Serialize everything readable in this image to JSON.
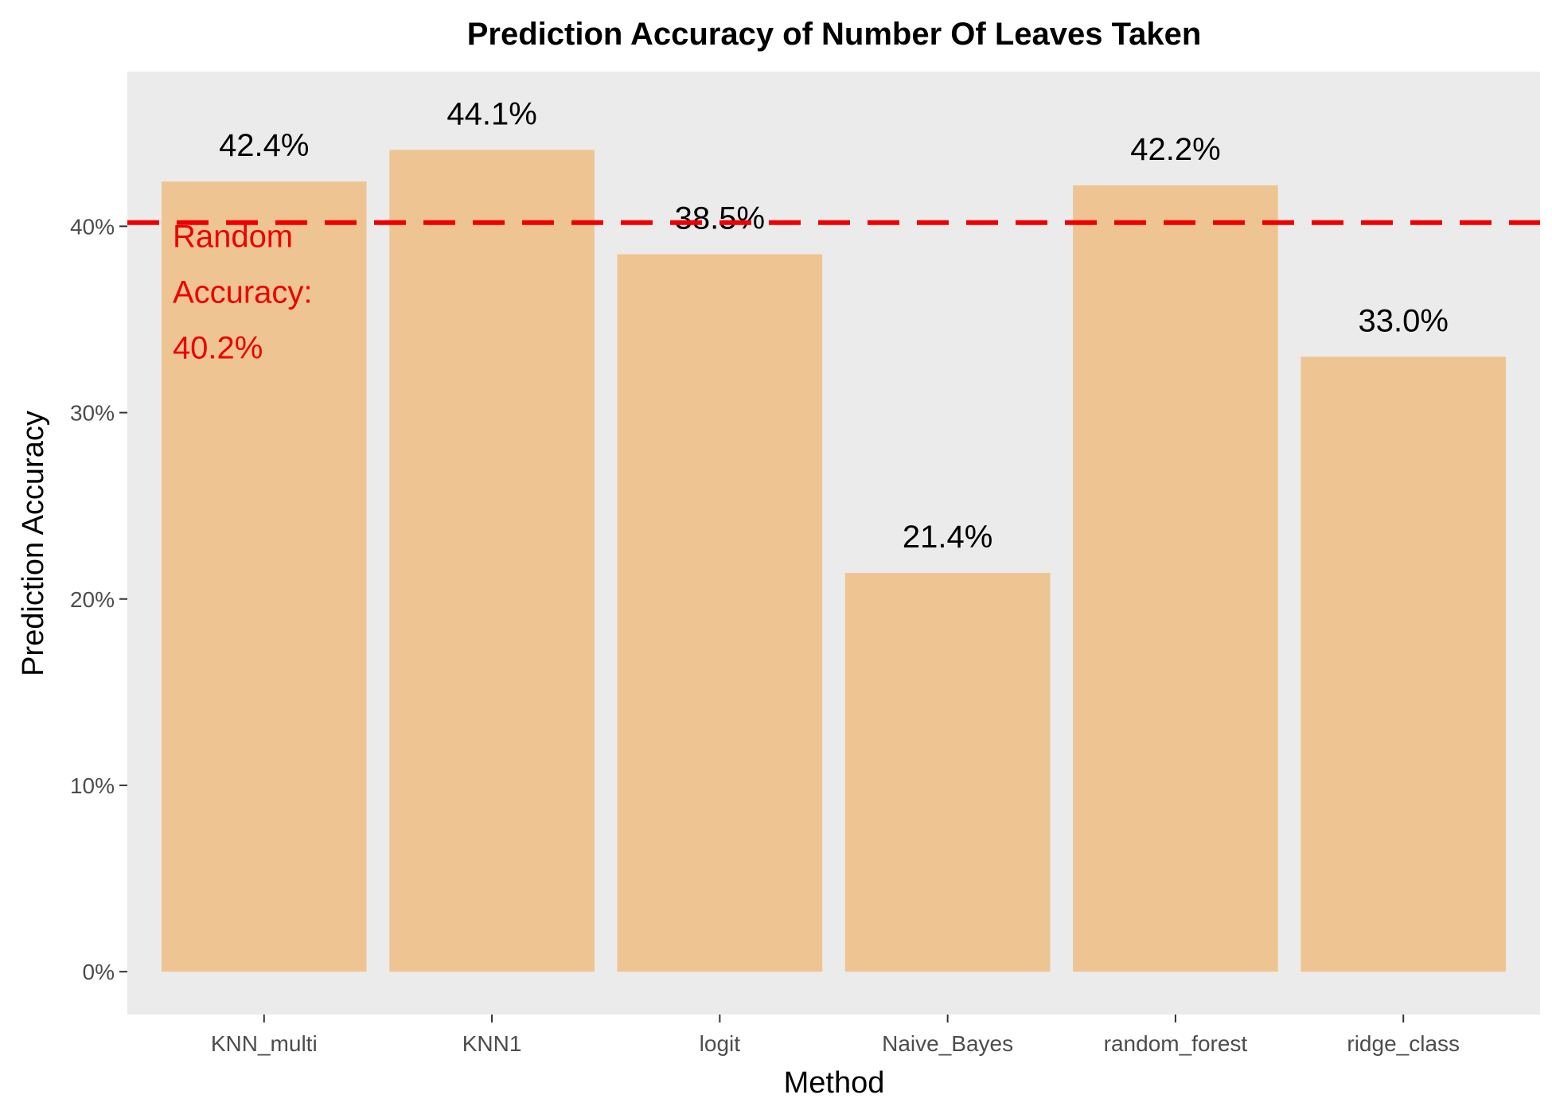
{
  "chart_data": {
    "type": "bar",
    "title": "Prediction Accuracy of Number Of Leaves Taken",
    "xlabel": "Method",
    "ylabel": "Prediction Accuracy",
    "categories": [
      "KNN_multi",
      "KNN1",
      "logit",
      "Naive_Bayes",
      "random_forest",
      "ridge_class"
    ],
    "values": [
      42.4,
      44.1,
      38.5,
      21.4,
      42.2,
      33.0
    ],
    "value_labels": [
      "42.4%",
      "44.1%",
      "38.5%",
      "21.4%",
      "42.2%",
      "33.0%"
    ],
    "y_ticks": [
      0,
      10,
      20,
      30,
      40
    ],
    "y_tick_labels": [
      "0%",
      "10%",
      "20%",
      "30%",
      "40%"
    ],
    "ylim": [
      -2.3,
      48.3
    ],
    "grid": false,
    "reference_line": {
      "value": 40.2,
      "style": "dashed",
      "color": "#ee0000",
      "label_lines": [
        "Random",
        "Accuracy:",
        "40.2%"
      ]
    },
    "colors": {
      "bar": "#eec592",
      "panel": "#ebebeb",
      "reference": "#ee0000"
    }
  }
}
